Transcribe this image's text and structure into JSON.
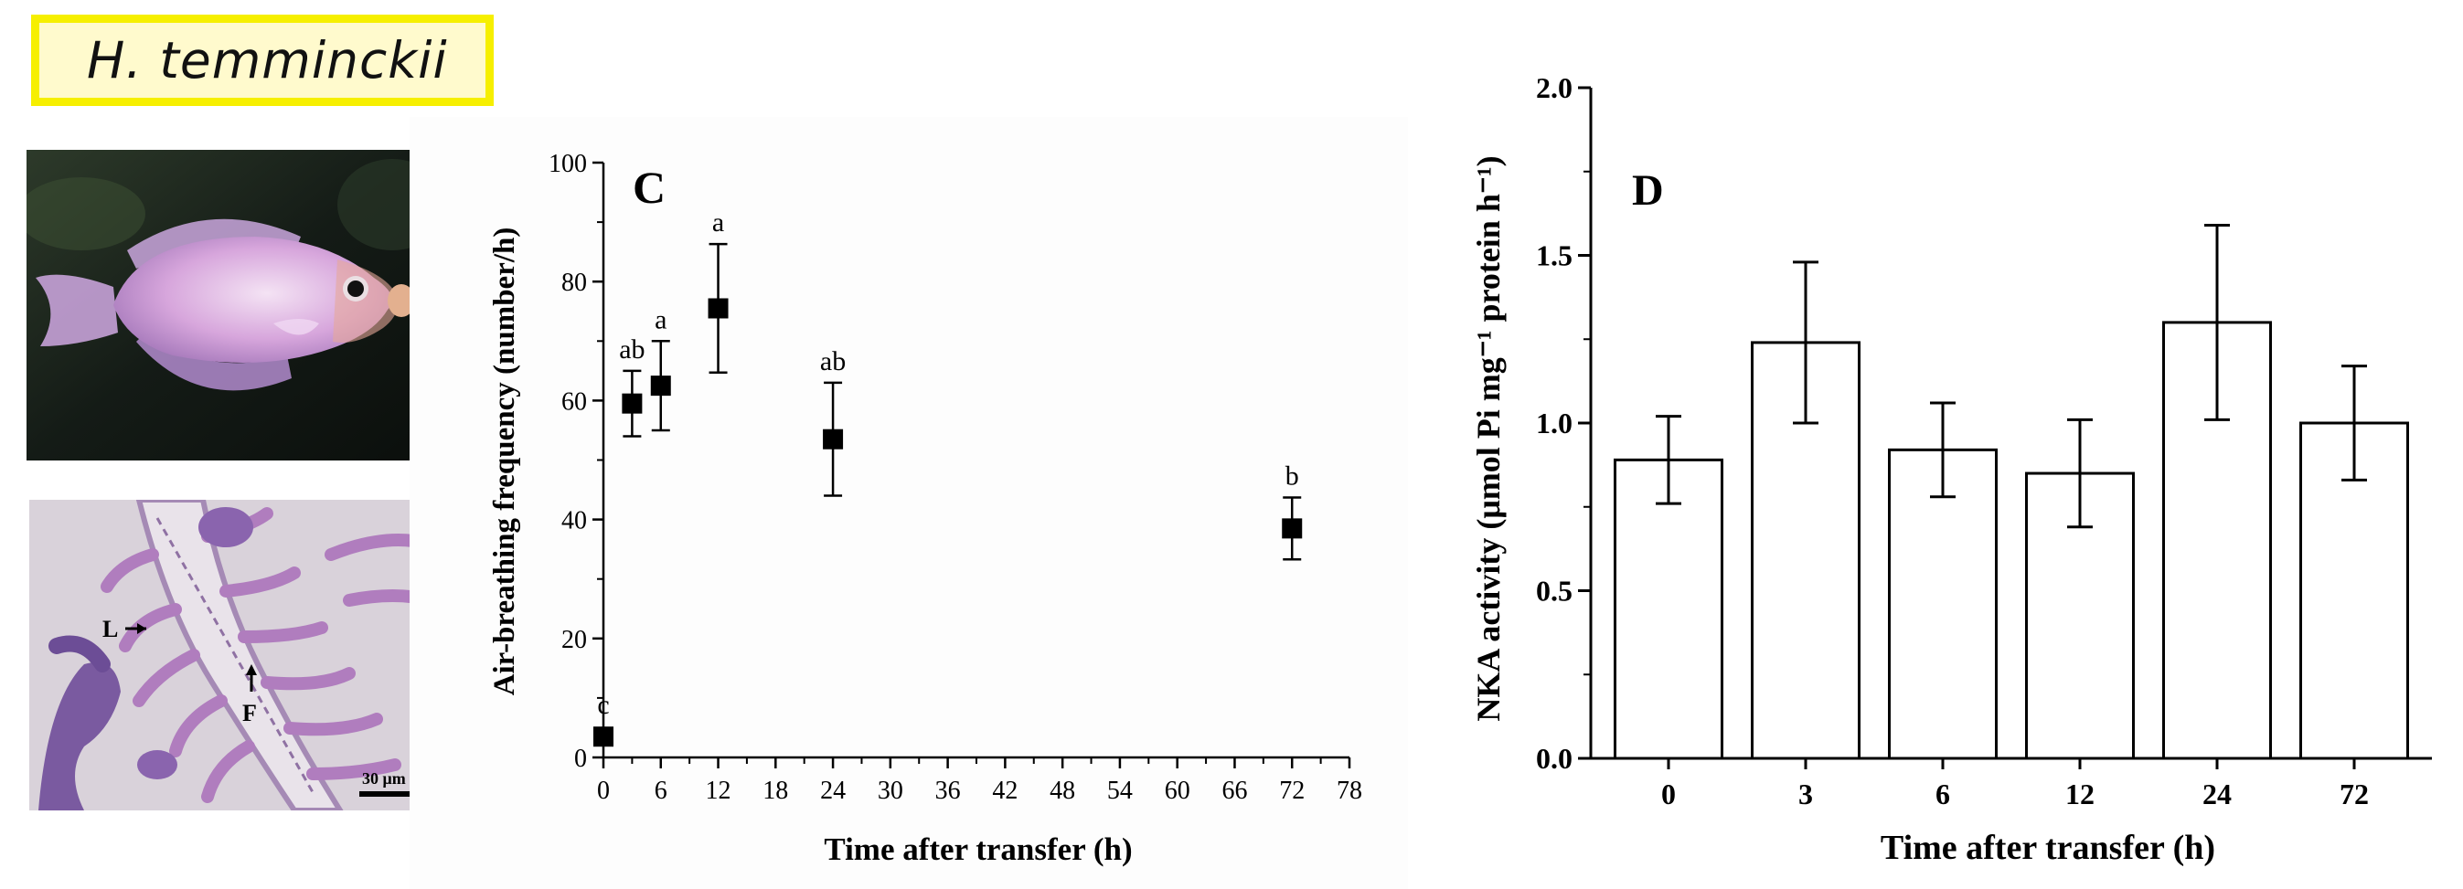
{
  "species_label": "H. temminckii",
  "histology": {
    "label_l": "L",
    "label_f": "F",
    "scale_bar": "30 μm"
  },
  "chart_data": [
    {
      "type": "scatter",
      "panel_label": "C",
      "xlabel": "Time after transfer (h)",
      "ylabel": "Air-breathing frequency (number/h)",
      "xlim": [
        0,
        78
      ],
      "ylim": [
        0,
        100
      ],
      "xticks": [
        0,
        6,
        12,
        18,
        24,
        30,
        36,
        42,
        48,
        54,
        60,
        66,
        72,
        78
      ],
      "yticks": [
        0,
        20,
        40,
        60,
        80,
        100
      ],
      "marker": "filled-square",
      "color": "#000000",
      "points": [
        {
          "x": 0,
          "y": 3.5,
          "err": 0,
          "group": "c"
        },
        {
          "x": 3,
          "y": 59.5,
          "err": 5.5,
          "group": "ab"
        },
        {
          "x": 6,
          "y": 62.5,
          "err": 7.5,
          "group": "a"
        },
        {
          "x": 12,
          "y": 75.5,
          "err": 10.8,
          "group": "a"
        },
        {
          "x": 24,
          "y": 53.5,
          "err": 9.5,
          "group": "ab"
        },
        {
          "x": 72,
          "y": 38.5,
          "err": 5.2,
          "group": "b"
        }
      ]
    },
    {
      "type": "bar",
      "panel_label": "D",
      "xlabel": "Time after transfer (h)",
      "ylabel": "NKA activity (μmol Pi mg⁻¹ protein h⁻¹)",
      "categories": [
        "0",
        "3",
        "6",
        "12",
        "24",
        "72"
      ],
      "values": [
        0.89,
        1.24,
        0.92,
        0.85,
        1.3,
        1.0
      ],
      "errors": [
        0.13,
        0.24,
        0.14,
        0.16,
        0.29,
        0.17
      ],
      "ylim": [
        0,
        2.0
      ],
      "yticks": [
        "0.0",
        "0.5",
        "1.0",
        "1.5",
        "2.0"
      ],
      "bar_fill": "#ffffff",
      "bar_stroke": "#000000"
    }
  ]
}
